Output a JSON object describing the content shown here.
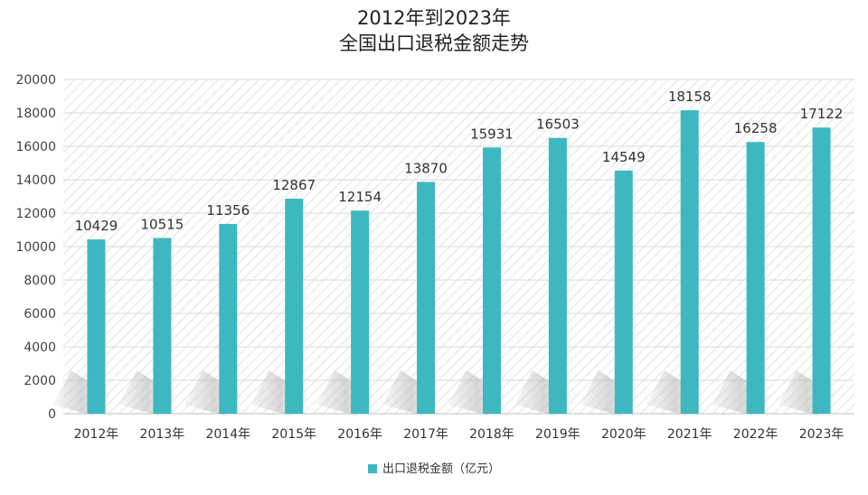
{
  "chart_data": {
    "type": "bar",
    "title": [
      "2012年到2023年",
      "全国出口退税金额走势"
    ],
    "categories": [
      "2012年",
      "2013年",
      "2014年",
      "2015年",
      "2016年",
      "2017年",
      "2018年",
      "2019年",
      "2020年",
      "2021年",
      "2022年",
      "2023年"
    ],
    "series": [
      {
        "name": "出口退税金额（亿元）",
        "color": "#3db8c0",
        "values": [
          10429,
          10515,
          11356,
          12867,
          12154,
          13870,
          15931,
          16503,
          14549,
          18158,
          16258,
          17122
        ]
      }
    ],
    "data_labels": [
      "10429",
      "10515",
      "11356",
      "12867",
      "12154",
      "13870",
      "15931",
      "16503",
      "14549",
      "18158",
      "16258",
      "17122"
    ],
    "ylim": [
      0,
      20000
    ],
    "y_ticks": [
      0,
      2000,
      4000,
      6000,
      8000,
      10000,
      12000,
      14000,
      16000,
      18000,
      20000
    ],
    "y_tick_labels": [
      "0",
      "2000",
      "4000",
      "6000",
      "8000",
      "10000",
      "12000",
      "14000",
      "16000",
      "18000",
      "20000"
    ],
    "grid": true,
    "legend_position": "bottom"
  }
}
